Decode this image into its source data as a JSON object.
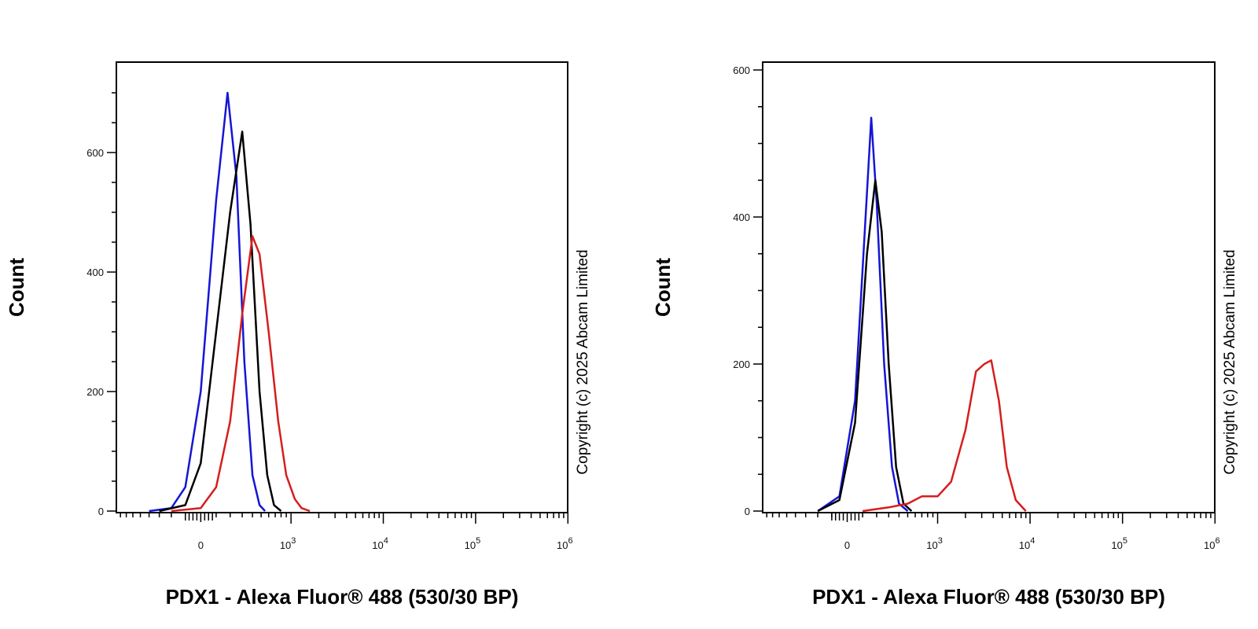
{
  "chart_data": [
    {
      "type": "line",
      "title": "",
      "xlabel": "PDX1 - Alexa Fluor® 488 (530/30 BP)",
      "ylabel": "Count",
      "copyright": "Copyright (c) 2025 Abcam Limited",
      "x_scale": "biexponential",
      "x_ticks": [
        {
          "value": 0,
          "base": "0",
          "exp": ""
        },
        {
          "value": 1000,
          "base": "10",
          "exp": "3"
        },
        {
          "value": 10000,
          "base": "10",
          "exp": "4"
        },
        {
          "value": 100000,
          "base": "10",
          "exp": "5"
        },
        {
          "value": 1000000,
          "base": "10",
          "exp": "6"
        }
      ],
      "y_ticks": [
        0,
        200,
        400,
        600
      ],
      "ylim": [
        0,
        700
      ],
      "colors": {
        "blue": "#1515d6",
        "black": "#000000",
        "red": "#d61d1d"
      },
      "series": [
        {
          "color": "blue",
          "points": [
            [
              -400,
              0
            ],
            [
              -200,
              5
            ],
            [
              -100,
              40
            ],
            [
              0,
              200
            ],
            [
              100,
              520
            ],
            [
              180,
              700
            ],
            [
              250,
              560
            ],
            [
              320,
              250
            ],
            [
              400,
              60
            ],
            [
              480,
              10
            ],
            [
              550,
              0
            ]
          ]
        },
        {
          "color": "black",
          "points": [
            [
              -300,
              0
            ],
            [
              -100,
              10
            ],
            [
              0,
              80
            ],
            [
              100,
              300
            ],
            [
              200,
              500
            ],
            [
              300,
              635
            ],
            [
              380,
              480
            ],
            [
              480,
              200
            ],
            [
              580,
              60
            ],
            [
              680,
              10
            ],
            [
              800,
              0
            ]
          ]
        },
        {
          "color": "red",
          "points": [
            [
              -200,
              0
            ],
            [
              0,
              5
            ],
            [
              100,
              40
            ],
            [
              200,
              150
            ],
            [
              300,
              330
            ],
            [
              400,
              460
            ],
            [
              480,
              430
            ],
            [
              600,
              300
            ],
            [
              750,
              150
            ],
            [
              900,
              60
            ],
            [
              1100,
              20
            ],
            [
              1300,
              5
            ],
            [
              1600,
              0
            ]
          ]
        }
      ]
    },
    {
      "type": "line",
      "title": "",
      "xlabel": "PDX1 - Alexa Fluor® 488 (530/30 BP)",
      "ylabel": "Count",
      "copyright": "Copyright (c) 2025 Abcam Limited",
      "x_scale": "biexponential",
      "x_ticks": [
        {
          "value": 0,
          "base": "0",
          "exp": ""
        },
        {
          "value": 1000,
          "base": "10",
          "exp": "3"
        },
        {
          "value": 10000,
          "base": "10",
          "exp": "4"
        },
        {
          "value": 100000,
          "base": "10",
          "exp": "5"
        },
        {
          "value": 1000000,
          "base": "10",
          "exp": "6"
        }
      ],
      "y_ticks": [
        0,
        200,
        400,
        600
      ],
      "ylim": [
        0,
        600
      ],
      "colors": {
        "blue": "#1515d6",
        "black": "#000000",
        "red": "#d61d1d"
      },
      "series": [
        {
          "color": "blue",
          "points": [
            [
              -200,
              0
            ],
            [
              -50,
              20
            ],
            [
              50,
              150
            ],
            [
              120,
              400
            ],
            [
              160,
              535
            ],
            [
              200,
              420
            ],
            [
              260,
              200
            ],
            [
              330,
              60
            ],
            [
              400,
              10
            ],
            [
              500,
              0
            ]
          ]
        },
        {
          "color": "black",
          "points": [
            [
              -200,
              0
            ],
            [
              -50,
              15
            ],
            [
              50,
              120
            ],
            [
              130,
              350
            ],
            [
              190,
              450
            ],
            [
              240,
              380
            ],
            [
              300,
              200
            ],
            [
              370,
              60
            ],
            [
              450,
              10
            ],
            [
              550,
              0
            ]
          ]
        },
        {
          "color": "red",
          "points": [
            [
              100,
              0
            ],
            [
              300,
              5
            ],
            [
              500,
              10
            ],
            [
              700,
              20
            ],
            [
              1000,
              20
            ],
            [
              1400,
              40
            ],
            [
              2000,
              110
            ],
            [
              2600,
              190
            ],
            [
              3200,
              200
            ],
            [
              3800,
              205
            ],
            [
              4600,
              150
            ],
            [
              5600,
              60
            ],
            [
              7000,
              15
            ],
            [
              9000,
              0
            ]
          ]
        }
      ]
    }
  ]
}
